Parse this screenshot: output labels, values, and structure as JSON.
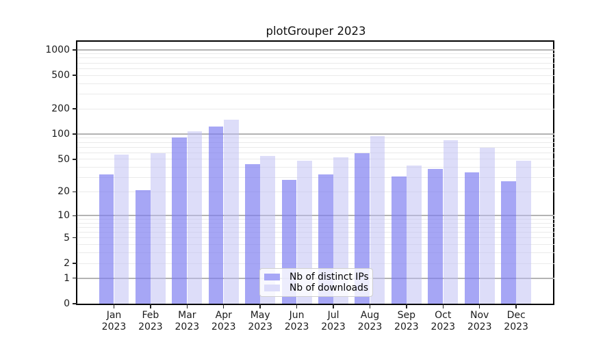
{
  "title": "plotGrouper 2023",
  "colors": {
    "ips_bar": "rgba(124,124,240,0.68)",
    "downloads_bar": "rgba(188,188,244,0.5)",
    "ips_swatch": "#a7a7f6",
    "downloads_swatch": "#dcdcfa",
    "grid_major": "#b3b3b3",
    "grid_minor": "#eaeaea",
    "background": "#ffffff"
  },
  "legend": {
    "items": [
      {
        "label": "Nb of distinct IPs",
        "series_key": "ips"
      },
      {
        "label": "Nb of downloads",
        "series_key": "downloads"
      }
    ]
  },
  "chart_data": {
    "type": "bar",
    "title": "plotGrouper 2023",
    "categories": [
      "Jan",
      "Feb",
      "Mar",
      "Apr",
      "May",
      "Jun",
      "Jul",
      "Aug",
      "Sep",
      "Oct",
      "Nov",
      "Dec"
    ],
    "year": "2023",
    "series": [
      {
        "name": "Nb of distinct IPs",
        "values": [
          33,
          21,
          91,
          123,
          44,
          28,
          33,
          59,
          31,
          38,
          35,
          27
        ]
      },
      {
        "name": "Nb of downloads",
        "values": [
          57,
          59,
          108,
          150,
          55,
          48,
          53,
          95,
          42,
          85,
          69,
          48
        ]
      }
    ],
    "xlabel": "",
    "ylabel": "",
    "yscale": "log1p (axis position proportional to log10(value+1))",
    "ylim": [
      0,
      1250
    ],
    "yticks": [
      0,
      1,
      2,
      5,
      10,
      20,
      50,
      100,
      200,
      500,
      1000
    ],
    "major_gridlines": [
      1,
      10,
      100,
      1000
    ],
    "minor_gridlines": [
      2,
      3,
      4,
      5,
      6,
      7,
      8,
      9,
      20,
      30,
      40,
      50,
      60,
      70,
      80,
      90,
      200,
      300,
      400,
      500,
      600,
      700,
      800,
      900
    ],
    "grid": true,
    "legend_position": "lower center"
  }
}
